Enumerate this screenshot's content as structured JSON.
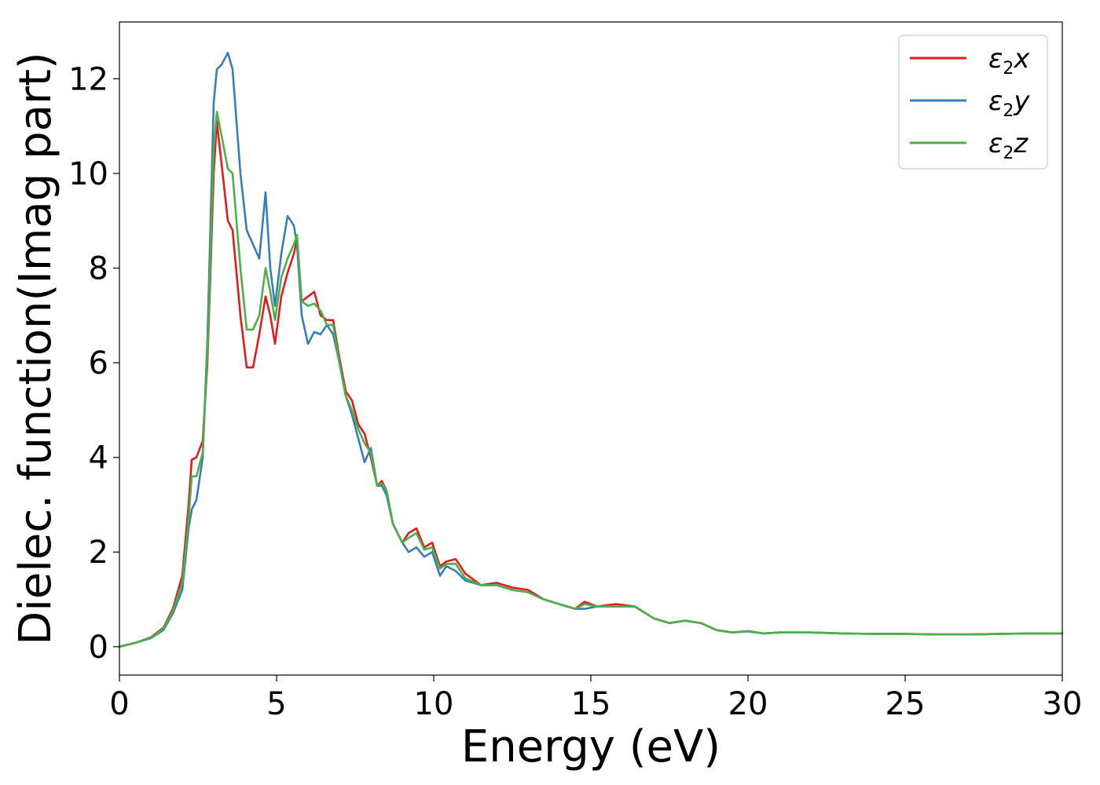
{
  "chart_data": {
    "type": "line",
    "title": "",
    "xlabel": "Energy (eV)",
    "ylabel": "Dielec. function(Imag part)",
    "xlim": [
      0,
      30
    ],
    "ylim": [
      -0.6,
      13.2
    ],
    "xticks": [
      0,
      5,
      10,
      15,
      20,
      25,
      30
    ],
    "yticks": [
      0,
      2,
      4,
      6,
      8,
      10,
      12
    ],
    "grid": false,
    "legend_position": "upper right",
    "series": [
      {
        "name": "ε₂x",
        "label_base": "ε",
        "label_sub": "2",
        "label_var": "x",
        "color": "#e41a1c",
        "x": [
          0,
          0.5,
          1,
          1.4,
          1.7,
          2,
          2.2,
          2.3,
          2.45,
          2.65,
          2.8,
          3.0,
          3.1,
          3.25,
          3.45,
          3.6,
          3.85,
          4.05,
          4.25,
          4.45,
          4.65,
          4.8,
          4.95,
          5.15,
          5.35,
          5.55,
          5.65,
          5.8,
          6.0,
          6.2,
          6.4,
          6.6,
          6.8,
          7.0,
          7.2,
          7.4,
          7.6,
          7.8,
          8.0,
          8.2,
          8.35,
          8.5,
          8.7,
          9.0,
          9.2,
          9.45,
          9.7,
          9.95,
          10.2,
          10.4,
          10.7,
          11,
          11.5,
          12,
          12.5,
          13,
          13.5,
          14,
          14.5,
          14.8,
          15.2,
          15.8,
          16.4,
          17,
          17.5,
          18,
          18.5,
          19,
          19.5,
          20,
          20.5,
          21,
          22,
          23,
          24,
          25,
          26,
          27,
          28,
          29,
          30
        ],
        "y": [
          0,
          0.08,
          0.2,
          0.4,
          0.8,
          1.5,
          3.0,
          3.95,
          4.0,
          4.35,
          6.0,
          10.0,
          11.1,
          10.2,
          9.0,
          8.8,
          7.0,
          5.9,
          5.9,
          6.6,
          7.4,
          7.0,
          6.4,
          7.4,
          7.9,
          8.3,
          8.6,
          7.3,
          7.4,
          7.5,
          7.0,
          6.9,
          6.9,
          6.1,
          5.4,
          5.2,
          4.7,
          4.5,
          4.0,
          3.4,
          3.5,
          3.3,
          2.6,
          2.2,
          2.4,
          2.5,
          2.1,
          2.2,
          1.7,
          1.8,
          1.85,
          1.55,
          1.3,
          1.35,
          1.25,
          1.2,
          1.0,
          0.9,
          0.8,
          0.95,
          0.85,
          0.9,
          0.85,
          0.6,
          0.5,
          0.55,
          0.5,
          0.35,
          0.3,
          0.33,
          0.28,
          0.3,
          0.3,
          0.28,
          0.27,
          0.27,
          0.26,
          0.26,
          0.27,
          0.28,
          0.28
        ]
      },
      {
        "name": "ε₂y",
        "label_base": "ε",
        "label_sub": "2",
        "label_var": "y",
        "color": "#377eb8",
        "x": [
          0,
          0.5,
          1,
          1.4,
          1.7,
          2,
          2.2,
          2.3,
          2.45,
          2.65,
          2.8,
          3.0,
          3.1,
          3.25,
          3.45,
          3.6,
          3.85,
          4.05,
          4.25,
          4.45,
          4.65,
          4.8,
          4.95,
          5.15,
          5.35,
          5.55,
          5.65,
          5.8,
          6.0,
          6.2,
          6.4,
          6.6,
          6.8,
          7.0,
          7.2,
          7.4,
          7.6,
          7.8,
          8.0,
          8.2,
          8.35,
          8.5,
          8.7,
          9.0,
          9.2,
          9.45,
          9.7,
          9.95,
          10.2,
          10.4,
          10.7,
          11,
          11.5,
          12,
          12.5,
          13,
          13.5,
          14,
          14.5,
          14.8,
          15.2,
          15.8,
          16.4,
          17,
          17.5,
          18,
          18.5,
          19,
          19.5,
          20,
          20.5,
          21,
          22,
          23,
          24,
          25,
          26,
          27,
          28,
          29,
          30
        ],
        "y": [
          0,
          0.08,
          0.18,
          0.35,
          0.7,
          1.2,
          2.5,
          2.9,
          3.1,
          4.0,
          6.5,
          11.5,
          12.2,
          12.3,
          12.55,
          12.2,
          10.0,
          8.8,
          8.5,
          8.2,
          9.6,
          8.0,
          7.2,
          8.3,
          9.1,
          8.9,
          8.5,
          7.0,
          6.4,
          6.65,
          6.6,
          6.8,
          6.6,
          6.0,
          5.3,
          4.9,
          4.4,
          3.9,
          4.2,
          3.4,
          3.4,
          3.2,
          2.6,
          2.2,
          2.0,
          2.1,
          1.9,
          2.0,
          1.5,
          1.7,
          1.6,
          1.4,
          1.3,
          1.3,
          1.2,
          1.15,
          1.0,
          0.9,
          0.8,
          0.8,
          0.85,
          0.85,
          0.85,
          0.6,
          0.5,
          0.55,
          0.5,
          0.35,
          0.3,
          0.32,
          0.28,
          0.3,
          0.3,
          0.28,
          0.27,
          0.27,
          0.26,
          0.26,
          0.27,
          0.28,
          0.28
        ]
      },
      {
        "name": "ε₂z",
        "label_base": "ε",
        "label_sub": "2",
        "label_var": "z",
        "color": "#4daf4a",
        "x": [
          0,
          0.5,
          1,
          1.4,
          1.7,
          2,
          2.2,
          2.3,
          2.45,
          2.65,
          2.8,
          3.0,
          3.1,
          3.25,
          3.45,
          3.6,
          3.85,
          4.05,
          4.25,
          4.45,
          4.65,
          4.8,
          4.95,
          5.15,
          5.35,
          5.55,
          5.65,
          5.8,
          6.0,
          6.2,
          6.4,
          6.6,
          6.8,
          7.0,
          7.2,
          7.4,
          7.6,
          7.8,
          8.0,
          8.2,
          8.35,
          8.5,
          8.7,
          9.0,
          9.2,
          9.45,
          9.7,
          9.95,
          10.2,
          10.4,
          10.7,
          11,
          11.5,
          12,
          12.5,
          13,
          13.5,
          14,
          14.5,
          14.8,
          15.2,
          15.8,
          16.4,
          17,
          17.5,
          18,
          18.5,
          19,
          19.5,
          20,
          20.5,
          21,
          22,
          23,
          24,
          25,
          26,
          27,
          28,
          29,
          30
        ],
        "y": [
          0,
          0.08,
          0.19,
          0.38,
          0.75,
          1.35,
          2.7,
          3.6,
          3.6,
          4.1,
          6.2,
          10.5,
          11.3,
          10.8,
          10.1,
          10.0,
          8.0,
          6.7,
          6.7,
          7.0,
          8.0,
          7.5,
          6.9,
          7.8,
          8.2,
          8.5,
          8.7,
          7.3,
          7.2,
          7.25,
          7.1,
          6.8,
          6.8,
          6.0,
          5.3,
          5.0,
          4.6,
          4.3,
          4.1,
          3.4,
          3.45,
          3.3,
          2.6,
          2.2,
          2.3,
          2.4,
          2.05,
          2.1,
          1.65,
          1.75,
          1.75,
          1.45,
          1.3,
          1.3,
          1.2,
          1.15,
          1.0,
          0.9,
          0.8,
          0.9,
          0.85,
          0.85,
          0.85,
          0.6,
          0.5,
          0.55,
          0.5,
          0.35,
          0.3,
          0.33,
          0.28,
          0.3,
          0.3,
          0.28,
          0.27,
          0.27,
          0.26,
          0.26,
          0.27,
          0.28,
          0.28
        ]
      }
    ]
  }
}
